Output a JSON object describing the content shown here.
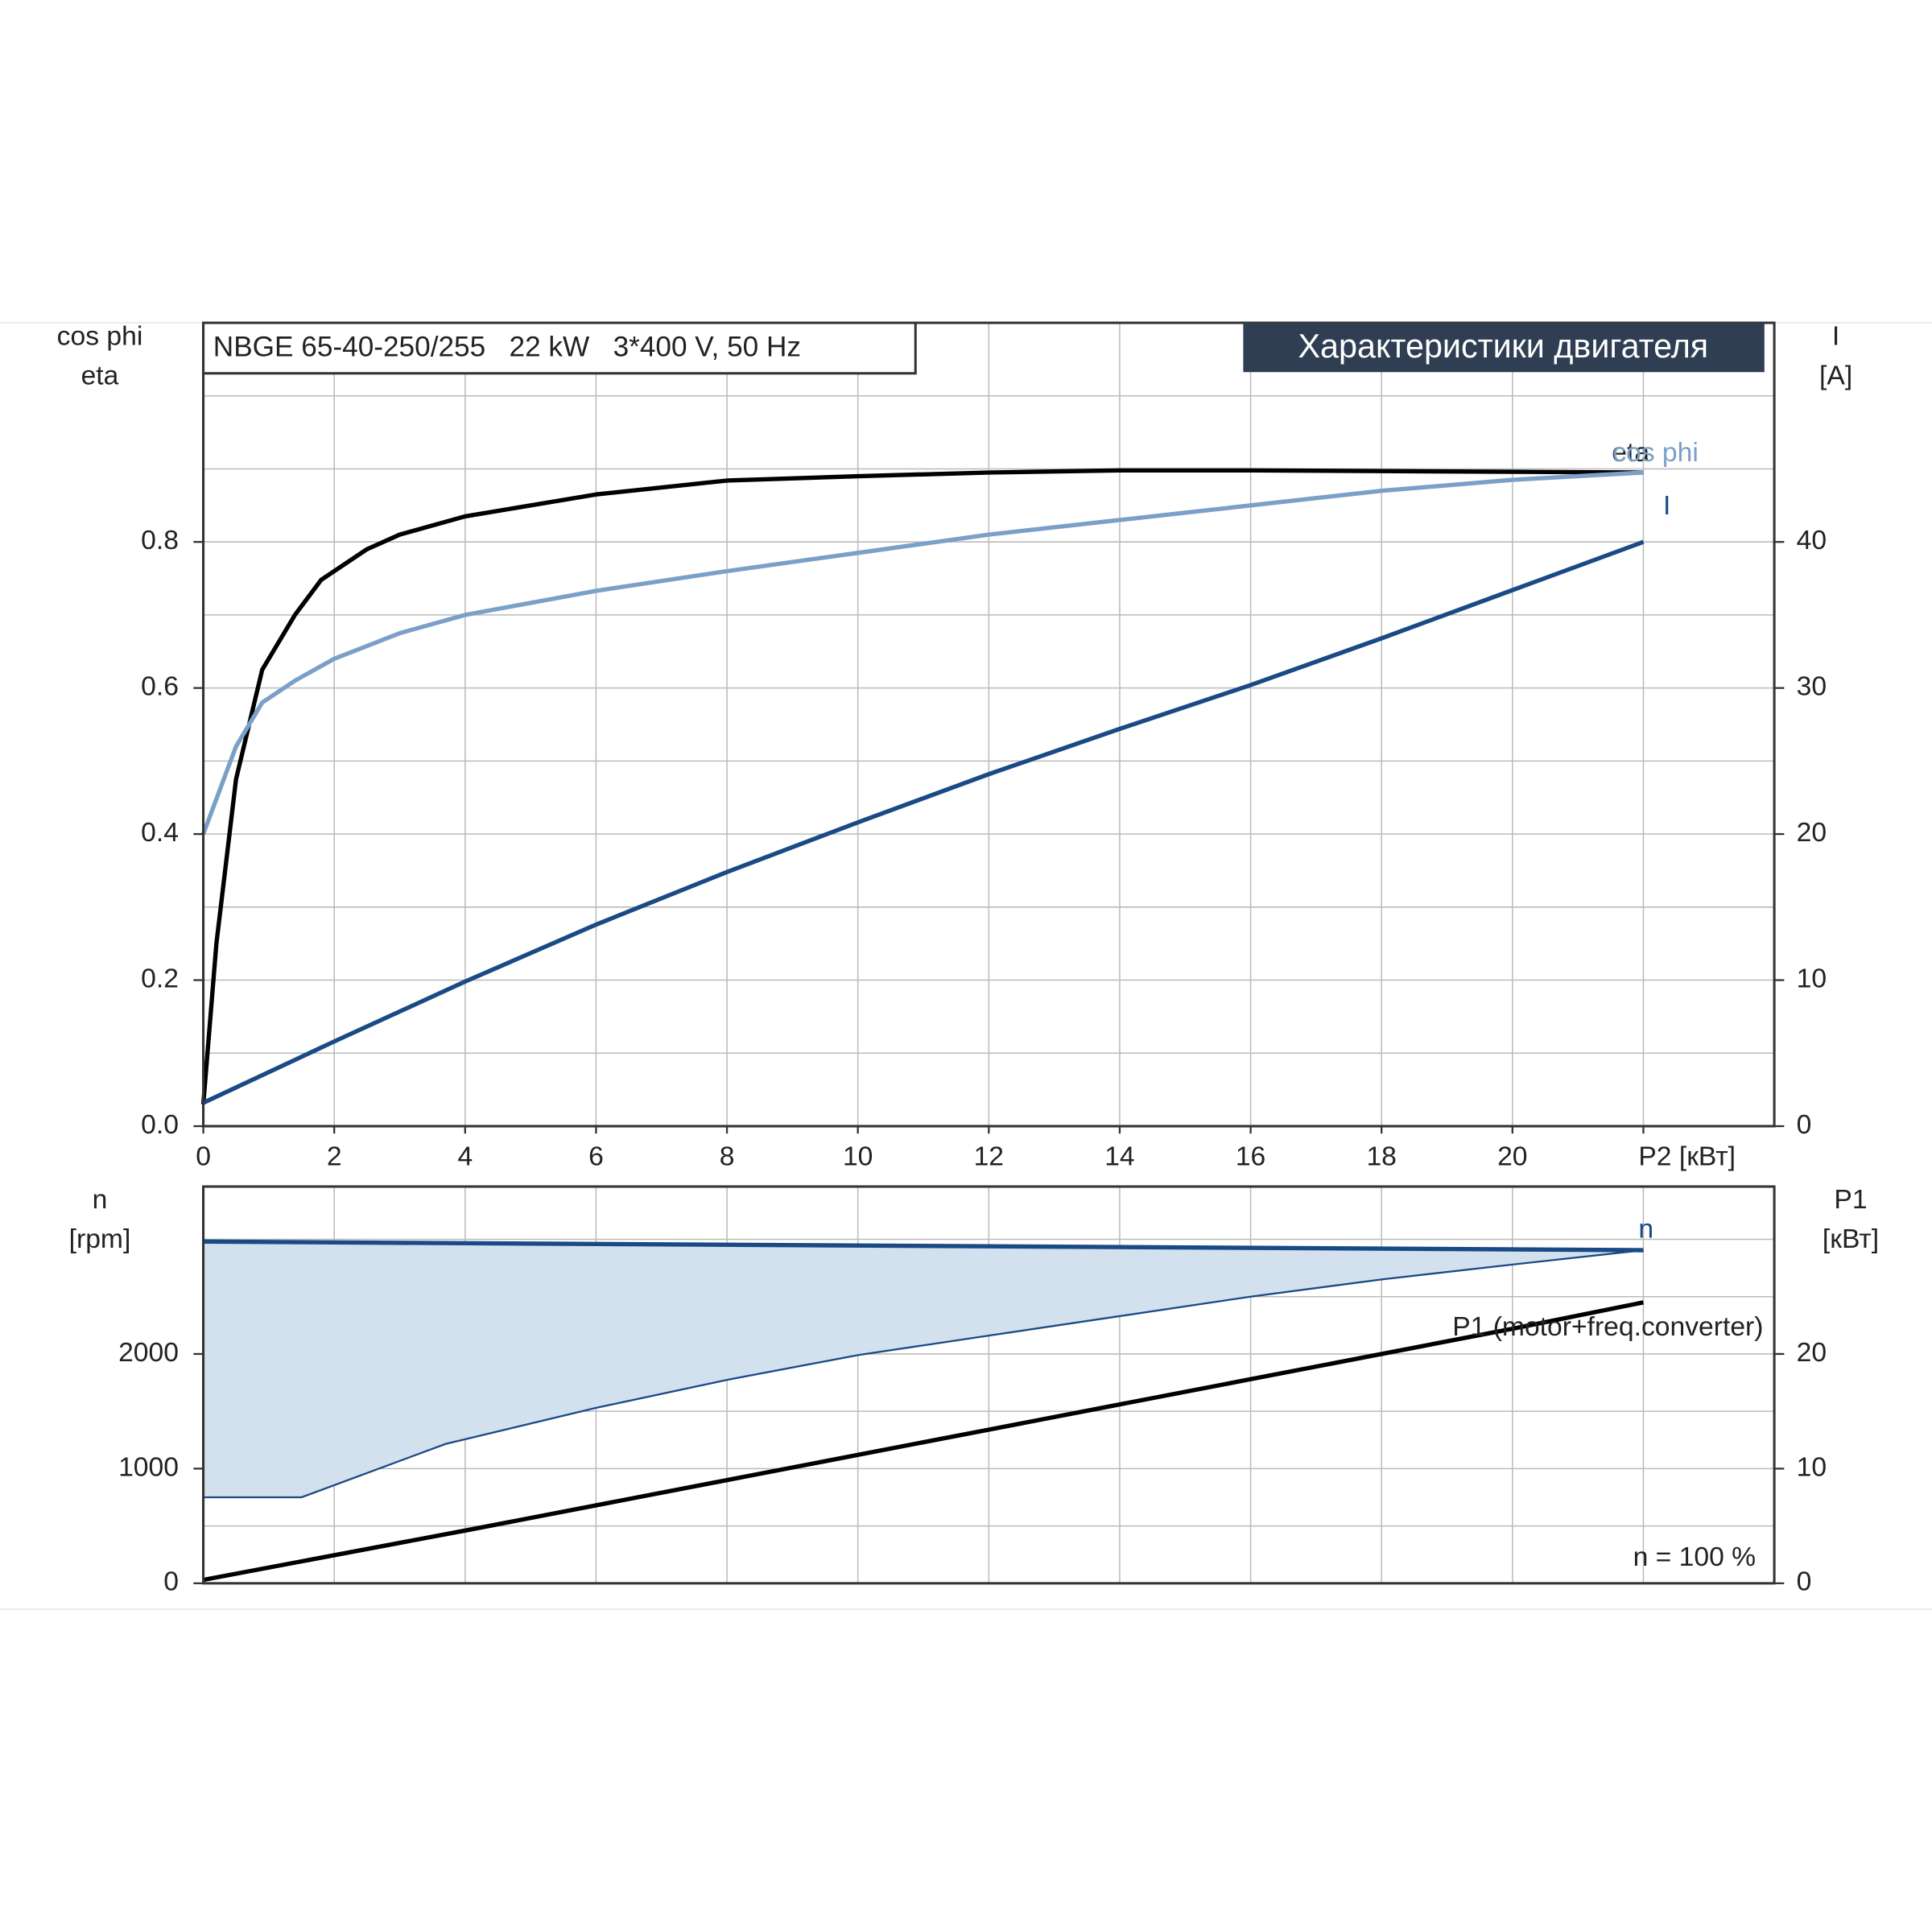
{
  "chart_data": [
    {
      "type": "line",
      "title": "Характеристики двигателя",
      "subtitle": "NBGE 65-40-250/255   22 kW   3*400 V, 50 Hz",
      "ylabel": [
        "cos phi",
        "eta"
      ],
      "y2label": [
        "I",
        "[A]"
      ],
      "xlim": [
        0,
        24
      ],
      "xticks": [
        0,
        2,
        4,
        6,
        8,
        10,
        12,
        14,
        16,
        18,
        20,
        {
          "value": 22,
          "label": "P2 [кВт]"
        }
      ],
      "ylim": [
        0,
        1.1
      ],
      "yticks": [
        {
          "value": 0,
          "label": "0.0"
        },
        0.2,
        0.4,
        0.6,
        0.8
      ],
      "ygrid": [
        0.1,
        0.3,
        0.5,
        0.7,
        0.9,
        1.0
      ],
      "y2lim": [
        0,
        55
      ],
      "y2ticks": [
        0,
        10,
        20,
        30,
        40
      ],
      "grid": true,
      "series": [
        {
          "name": "eta",
          "color": "#000000",
          "x": [
            0,
            0.2,
            0.5,
            0.9,
            1.4,
            1.8,
            2.5,
            3,
            4,
            6,
            8,
            10,
            12,
            14,
            16,
            18,
            20,
            22
          ],
          "values": [
            0.03,
            0.25,
            0.475,
            0.625,
            0.7,
            0.748,
            0.79,
            0.81,
            0.835,
            0.865,
            0.884,
            0.89,
            0.895,
            0.898,
            0.898,
            0.897,
            0.896,
            0.895
          ]
        },
        {
          "name": "cos phi",
          "color": "#7ba0c8",
          "x": [
            0,
            0.5,
            0.9,
            1.4,
            2,
            3,
            4,
            6,
            8,
            10,
            12,
            14,
            16,
            18,
            20,
            22
          ],
          "values": [
            0.4,
            0.52,
            0.58,
            0.61,
            0.64,
            0.675,
            0.7,
            0.733,
            0.76,
            0.785,
            0.81,
            0.83,
            0.85,
            0.87,
            0.885,
            0.895
          ]
        },
        {
          "name": "I",
          "color": "#1a4a85",
          "axis": "y2",
          "x": [
            0,
            2,
            4,
            6,
            8,
            10,
            12,
            14,
            16,
            18,
            20,
            22
          ],
          "values": [
            1.6,
            5.8,
            9.9,
            13.8,
            17.4,
            20.8,
            24.1,
            27.2,
            30.2,
            33.4,
            36.7,
            40
          ]
        }
      ]
    },
    {
      "type": "line",
      "ylabel": [
        "n",
        "[rpm]"
      ],
      "y2label": [
        "P1",
        "[кВт]"
      ],
      "annotation": "n = 100 %",
      "xlim": [
        0,
        24
      ],
      "xgrid": [
        2,
        4,
        6,
        8,
        10,
        12,
        14,
        16,
        18,
        20,
        22
      ],
      "ylim": [
        0,
        3460
      ],
      "yticks": [
        0,
        1000,
        2000
      ],
      "ygrid": [
        500,
        1500,
        2500,
        3000
      ],
      "y2lim": [
        0,
        34.6
      ],
      "y2ticks": [
        0,
        10,
        20
      ],
      "grid": true,
      "band": {
        "color": "#d3e0ee",
        "x": [
          0,
          1.5,
          3.7,
          6,
          8,
          10,
          12,
          14,
          16,
          18,
          20,
          22
        ],
        "lower": [
          750,
          750,
          1215,
          1530,
          1774,
          1990,
          2160,
          2330,
          2500,
          2650,
          2780,
          2905
        ]
      },
      "series": [
        {
          "name": "n",
          "color": "#1a4a85",
          "x": [
            0,
            22
          ],
          "values": [
            2980,
            2905
          ]
        },
        {
          "name": "P1 (motor+freq.converter)",
          "color": "#000000",
          "axis": "y2",
          "x": [
            0,
            4,
            8,
            12,
            16,
            20,
            22
          ],
          "values": [
            0.3,
            4.6,
            9.0,
            13.4,
            17.8,
            22.2,
            24.5
          ]
        }
      ]
    }
  ]
}
